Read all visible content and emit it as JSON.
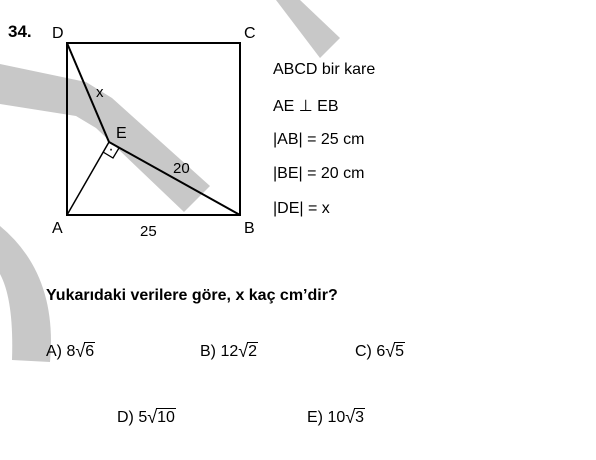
{
  "question": {
    "number": "34.",
    "text": "Yukarıdaki verilere göre,  x  kaç cm’dir?"
  },
  "given": {
    "lines": [
      "ABCD bir kare",
      "AE ⊥ EB",
      "|AB| = 25 cm",
      "|BE| = 20 cm",
      "|DE| = x"
    ]
  },
  "figure": {
    "point_labels": {
      "A": "A",
      "B": "B",
      "C": "C",
      "D": "D",
      "E": "E"
    },
    "segment_labels": {
      "de": "x",
      "be": "20",
      "ab": "25"
    },
    "right_angle_mark": "·"
  },
  "choices": [
    {
      "label": "A)",
      "coef": "8",
      "radicand": "6"
    },
    {
      "label": "B)",
      "coef": "12",
      "radicand": "2"
    },
    {
      "label": "C)",
      "coef": "6",
      "radicand": "5"
    },
    {
      "label": "D)",
      "coef": "5",
      "radicand": "10"
    },
    {
      "label": "E)",
      "coef": "10",
      "radicand": "3"
    }
  ],
  "watermark_color": "#c8c8c8"
}
